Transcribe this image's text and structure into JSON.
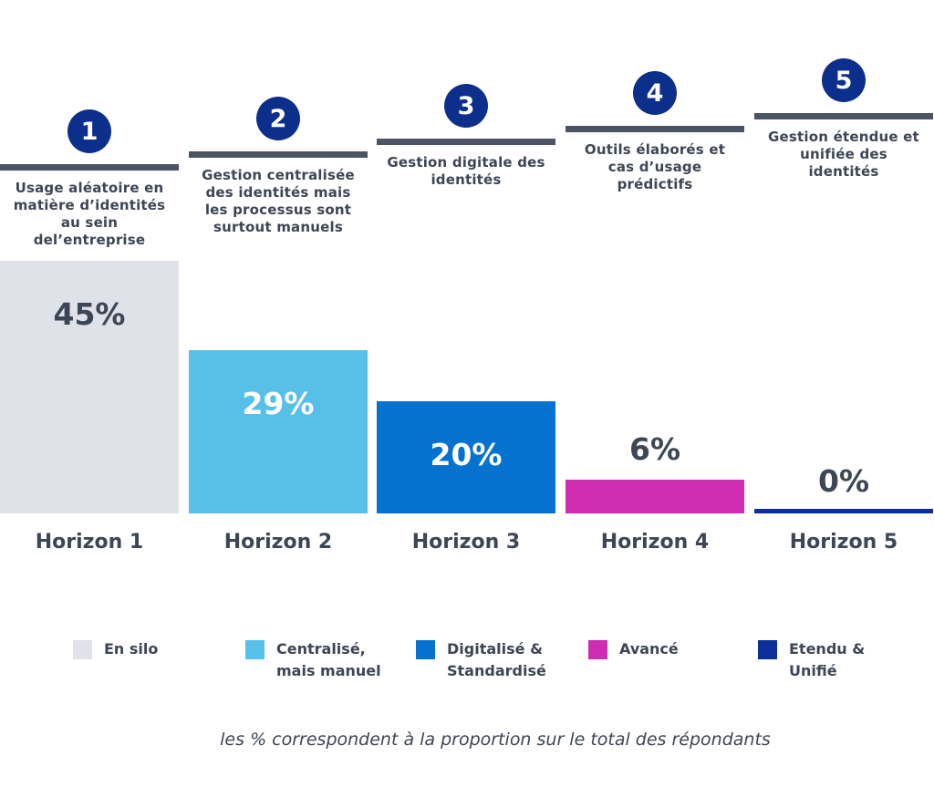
{
  "chart_data": {
    "type": "bar",
    "categories": [
      "Horizon 1",
      "Horizon 2",
      "Horizon 3",
      "Horizon 4",
      "Horizon 5"
    ],
    "values": [
      45,
      29,
      20,
      6,
      0
    ],
    "value_labels": [
      "45%",
      "29%",
      "20%",
      "6%",
      "0%"
    ],
    "ylim": [
      0,
      45
    ],
    "grid": false,
    "colors": [
      "#dfe2e8",
      "#56c0e8",
      "#0572cf",
      "#ce2cb1",
      "#0d2f9a"
    ],
    "value_label_colors": [
      "#3d4654",
      "#ffffff",
      "#ffffff",
      "#3d4654",
      "#3d4654"
    ],
    "steps": [
      {
        "number": "1",
        "description": "Usage aléatoire en\nmatière d’identités\nau sein\ndel’entreprise"
      },
      {
        "number": "2",
        "description": "Gestion centralisée\ndes identités mais\nles processus sont\nsurtout manuels"
      },
      {
        "number": "3",
        "description": "Gestion digitale des\nidentités"
      },
      {
        "number": "4",
        "description": "Outils élaborés et\ncas d’usage\nprédictifs"
      },
      {
        "number": "5",
        "description": "Gestion étendue et\nunifiée des\nidentités"
      }
    ],
    "legend": [
      {
        "label": "En silo",
        "color": "#dfe2e8"
      },
      {
        "label": "Centralisé,\nmais manuel",
        "color": "#56c0e8"
      },
      {
        "label": "Digitalisé &\nStandardisé",
        "color": "#0572cf"
      },
      {
        "label": "Avancé",
        "color": "#ce2cb1"
      },
      {
        "label": "Etendu &\nUnifié",
        "color": "#0d2f9a"
      }
    ],
    "footnote": "les % correspondent à la proportion sur le total des répondants"
  }
}
